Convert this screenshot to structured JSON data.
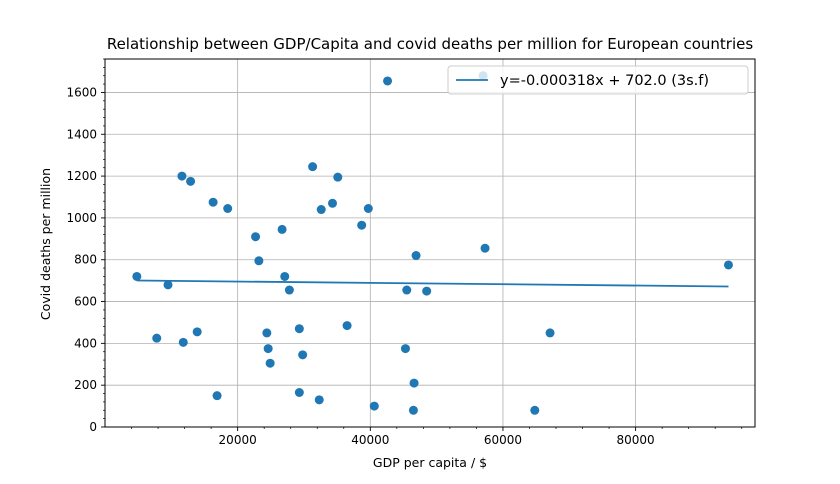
{
  "chart_data": {
    "type": "scatter",
    "title": "Relationship between GDP/Capita and covid deaths per million for European countries",
    "xlabel": "GDP per capita / $",
    "ylabel": "Covid deaths per million",
    "xlim": [
      0,
      98000
    ],
    "ylim": [
      0,
      1760
    ],
    "x_ticks": [
      20000,
      40000,
      60000,
      80000
    ],
    "x_tick_labels": [
      "20000",
      "40000",
      "60000",
      "80000"
    ],
    "y_ticks": [
      0,
      200,
      400,
      600,
      800,
      1000,
      1200,
      1400,
      1600
    ],
    "y_tick_labels": [
      "0",
      "200",
      "400",
      "600",
      "800",
      "1000",
      "1200",
      "1400",
      "1600"
    ],
    "grid": true,
    "legend_position": "upper right",
    "series": [
      {
        "kind": "scatter",
        "color": "#1f77b4",
        "points": [
          [
            4800,
            720
          ],
          [
            7800,
            425
          ],
          [
            9500,
            680
          ],
          [
            11600,
            1200
          ],
          [
            11800,
            405
          ],
          [
            12900,
            1175
          ],
          [
            13900,
            455
          ],
          [
            16300,
            1075
          ],
          [
            16900,
            150
          ],
          [
            18500,
            1045
          ],
          [
            22700,
            910
          ],
          [
            23200,
            795
          ],
          [
            24400,
            450
          ],
          [
            24600,
            375
          ],
          [
            24900,
            305
          ],
          [
            26700,
            945
          ],
          [
            27100,
            720
          ],
          [
            27800,
            655
          ],
          [
            29300,
            470
          ],
          [
            29300,
            165
          ],
          [
            29800,
            345
          ],
          [
            31300,
            1245
          ],
          [
            32300,
            130
          ],
          [
            32600,
            1040
          ],
          [
            34300,
            1070
          ],
          [
            35100,
            1195
          ],
          [
            36500,
            485
          ],
          [
            38700,
            965
          ],
          [
            39700,
            1045
          ],
          [
            40600,
            100
          ],
          [
            42600,
            1655
          ],
          [
            45300,
            375
          ],
          [
            45500,
            655
          ],
          [
            46600,
            210
          ],
          [
            46500,
            80
          ],
          [
            46900,
            820
          ],
          [
            48500,
            650
          ],
          [
            57000,
            1680
          ],
          [
            57300,
            855
          ],
          [
            64800,
            80
          ],
          [
            67100,
            450
          ],
          [
            94000,
            775
          ]
        ]
      },
      {
        "kind": "line",
        "name": "y=-0.000318x + 702.0 (3s.f)",
        "color": "#1f77b4",
        "slope": -0.000318,
        "intercept": 702.0,
        "x_range": [
          4800,
          94000
        ]
      }
    ]
  }
}
